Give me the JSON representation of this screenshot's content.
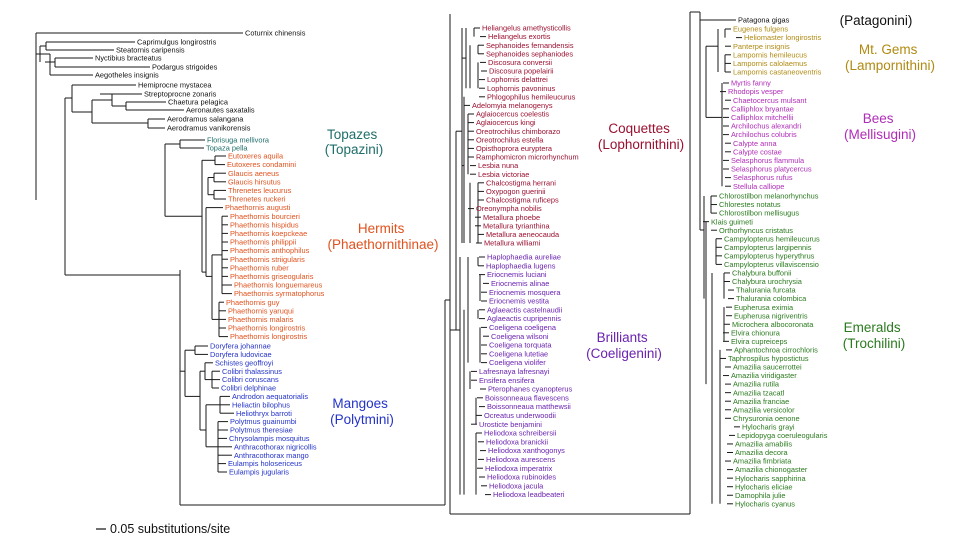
{
  "colors": {
    "branch": "#1a1a1a",
    "outgroup": "#111111",
    "topazes": "#1f6e6a",
    "hermits": "#e0521e",
    "mangoes": "#2433c8",
    "coquettes": "#9a1030",
    "brilliants": "#6a22b0",
    "patagonini": "#111111",
    "mtgems": "#b08a12",
    "bees": "#b02cb8",
    "emeralds": "#2a7a1e"
  },
  "scale_bar": {
    "label": "0.05 substitutions/site"
  },
  "clades": [
    {
      "id": "topazes",
      "line1": "Topazes",
      "line2": "(Topazini)"
    },
    {
      "id": "hermits",
      "line1": "Hermits",
      "line2": "(Phaethornithinae)"
    },
    {
      "id": "mangoes",
      "line1": "Mangoes",
      "line2": "(Polytmini)"
    },
    {
      "id": "coquettes",
      "line1": "Coquettes",
      "line2": "(Lophornithini)"
    },
    {
      "id": "brilliants",
      "line1": "Brilliants",
      "line2": "(Coeligenini)"
    },
    {
      "id": "patagonini",
      "line1": "(Patagonini)",
      "line2": ""
    },
    {
      "id": "mtgems",
      "line1": "Mt. Gems",
      "line2": "(Lampornithini)"
    },
    {
      "id": "bees",
      "line1": "Bees",
      "line2": "(Mellisugini)"
    },
    {
      "id": "emeralds",
      "line1": "Emeralds",
      "line2": "(Trochilini)"
    }
  ],
  "taxa": {
    "outgroup": [
      "Coturnix chinensis",
      "Caprimulgus longirostris",
      "Steatornis caripensis",
      "Nyctibius bracteatus",
      "Podargus strigoides",
      "Aegotheles insignis",
      "Hemiprocne mystacea",
      "Streptoprocne zonaris",
      "Chaetura pelagica",
      "Aeronautes saxatalis",
      "Aerodramus salangana",
      "Aerodramus vanikorensis"
    ],
    "topazes": [
      "Florisuga mellivora",
      "Topaza pella"
    ],
    "hermits": [
      "Eutoxeres aquila",
      "Eutoxeres condamini",
      "Glaucis aeneus",
      "Glaucis hirsutus",
      "Threnetes leucurus",
      "Threnetes ruckeri",
      "Phaethornis augusti",
      "Phaethornis bourcieri",
      "Phaethornis hispidus",
      "Phaethornis koepckeae",
      "Phaethornis philippii",
      "Phaethornis anthophilus",
      "Phaethornis striigularis",
      "Phaethornis ruber",
      "Phaethornis griseogularis",
      "Phaethornis longuemareus",
      "Phaethornis syrmatophorus",
      "Phaethornis guy",
      "Phaethornis yaruqui",
      "Phaethornis malaris",
      "Phaethornis longirostris",
      "Phaethornis longirostris"
    ],
    "mangoes": [
      "Doryfera johannae",
      "Doryfera ludovicae",
      "Schistes geoffroyi",
      "Colibri thalassinus",
      "Colibri coruscans",
      "Colibri delphinae",
      "Androdon aequatorialis",
      "Heliactin bilophus",
      "Heliothryx barroti",
      "Polytmus guainumbi",
      "Polytmus theresiae",
      "Chrysolampis mosquitus",
      "Anthracothorax nigricollis",
      "Anthracothorax mango",
      "Eulampis holosericeus",
      "Eulampis jugularis"
    ],
    "coquettes": [
      "Heliangelus amethysticollis",
      "Heliangelus exortis",
      "Sephanoides fernandensis",
      "Sephanoides sephaniodes",
      "Discosura conversii",
      "Discosura popelairii",
      "Lophornis delattrei",
      "Lophornis pavoninus",
      "Phlogophilus hemileucurus",
      "Adelomyia melanogenys",
      "Aglaiocercus coelestis",
      "Aglaiocercus kingi",
      "Oreotrochilus chimborazo",
      "Oreotrochilus estella",
      "Opisthoprora euryptera",
      "Ramphomicron microrhynchum",
      "Lesbia nuna",
      "Lesbia victoriae",
      "Chalcostigma herrani",
      "Oxypogon guerinii",
      "Chalcostigma ruficeps",
      "Oreonympha nobilis",
      "Metallura phoebe",
      "Metallura tyrianthina",
      "Metallura aeneocauda",
      "Metallura williami"
    ],
    "brilliants": [
      "Haplophaedia aureliae",
      "Haplophaedia lugens",
      "Eriocnemis luciani",
      "Eriocnemis alinae",
      "Eriocnemis mosquera",
      "Eriocnemis vestita",
      "Aglaeactis castelnaudii",
      "Aglaeactis cupripennis",
      "Coeligena coeligena",
      "Coeligena wilsoni",
      "Coeligena torquata",
      "Coeligena lutetiae",
      "Coeligena violifer",
      "Lafresnaya lafresnayi",
      "Ensifera ensifera",
      "Pterophanes cyanopterus",
      "Boissonneaua flavescens",
      "Boissonneaua matthewsii",
      "Ocreatus underwoodii",
      "Urosticte benjamini",
      "Heliodoxa schreibersii",
      "Heliodoxa branickii",
      "Heliodoxa xanthogonys",
      "Heliodoxa aurescens",
      "Heliodoxa imperatrix",
      "Heliodoxa rubinoides",
      "Heliodoxa jacula",
      "Heliodoxa leadbeateri"
    ],
    "patagonini": [
      "Patagona gigas"
    ],
    "mtgems": [
      "Eugenes fulgens",
      "Heliomaster longirostris",
      "Panterpe insignis",
      "Lampornis hemileucus",
      "Lampornis calolaemus",
      "Lampornis castaneoventris"
    ],
    "bees": [
      "Myrtis fanny",
      "Rhodopis vesper",
      "Chaetocercus mulsant",
      "Calliphlox bryantae",
      "Calliphlox mitchellii",
      "Archilochus alexandri",
      "Archilochus colubris",
      "Calypte anna",
      "Calypte costae",
      "Selasphorus flammula",
      "Selasphorus platycercus",
      "Selasphorus rufus",
      "Stellula calliope"
    ],
    "emeralds": [
      "Chlorostilbon melanorhynchus",
      "Chlorestes notatus",
      "Chlorostilbon mellisugus",
      "Klais guimeti",
      "Orthorhyncus cristatus",
      "Campylopterus hemileucurus",
      "Campylopterus largipennis",
      "Campylopterus hyperythrus",
      "Campylopterus villaviscensio",
      "Chalybura buffonii",
      "Chalybura urochrysia",
      "Thalurania furcata",
      "Thalurania colombica",
      "Eupherusa eximia",
      "Eupherusa nigriventris",
      "Microchera albocoronata",
      "Elvira chionura",
      "Elvira cupreiceps",
      "Aphantochroa cirrochloris",
      "Taphrospilus hypostictus",
      "Amazilia saucerrottei",
      "Amazilia viridigaster",
      "Amazilia rutila",
      "Amazilia tzacatl",
      "Amazilia franciae",
      "Amazilia versicolor",
      "Chrysuronia oenone",
      "Hylocharis grayi",
      "Lepidopyga coeruleogularis",
      "Amazilia amabilis",
      "Amazilia decora",
      "Amazilia fimbriata",
      "Amazilia chionogaster",
      "Hylocharis sapphirina",
      "Hylocharis eliciae",
      "Damophila julie",
      "Hylocharis cyanus"
    ]
  }
}
